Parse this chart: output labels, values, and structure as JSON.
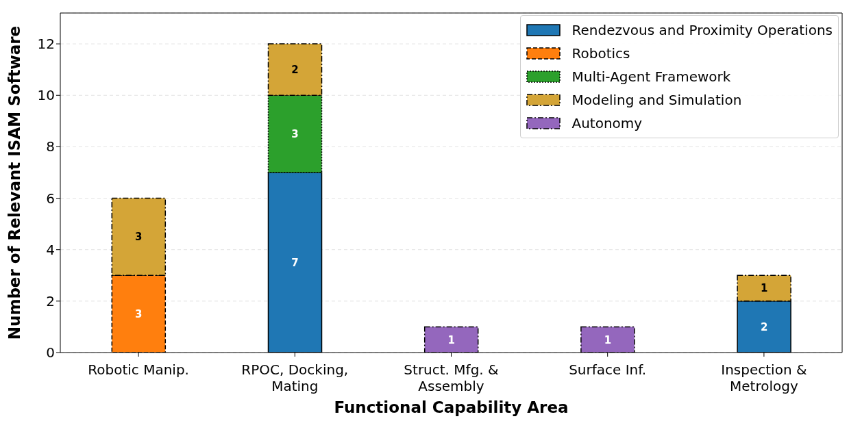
{
  "chart_data": {
    "type": "bar",
    "stacked": true,
    "xlabel": "Functional Capability Area",
    "ylabel": "Number of Relevant ISAM Software",
    "categories": [
      "Robotic Manip.",
      "RPOC, Docking, Mating",
      "Struct. Mfg. & Assembly",
      "Surface Inf.",
      "Inspection & Metrology"
    ],
    "series": [
      {
        "name": "Rendezvous and Proximity Operations",
        "color": "#1f77b4",
        "line_style": "solid",
        "values": [
          null,
          7,
          null,
          null,
          2
        ]
      },
      {
        "name": "Robotics",
        "color": "#ff7f0e",
        "line_style": "dashed",
        "values": [
          3,
          null,
          null,
          null,
          null
        ]
      },
      {
        "name": "Multi-Agent Framework",
        "color": "#2ca02c",
        "line_style": "dotted",
        "values": [
          null,
          3,
          null,
          null,
          null
        ]
      },
      {
        "name": "Modeling and Simulation",
        "color": "#d4a537",
        "line_style": "dashdot",
        "values": [
          3,
          2,
          null,
          null,
          1
        ]
      },
      {
        "name": "Autonomy",
        "color": "#9467bd",
        "line_style": "dashdot",
        "values": [
          null,
          null,
          1,
          1,
          null
        ]
      }
    ],
    "ylim": [
      0,
      13.2
    ],
    "yticks": [
      0,
      2,
      4,
      6,
      8,
      10,
      12
    ],
    "grid": "y",
    "legend": "top right",
    "data_labels": true
  }
}
